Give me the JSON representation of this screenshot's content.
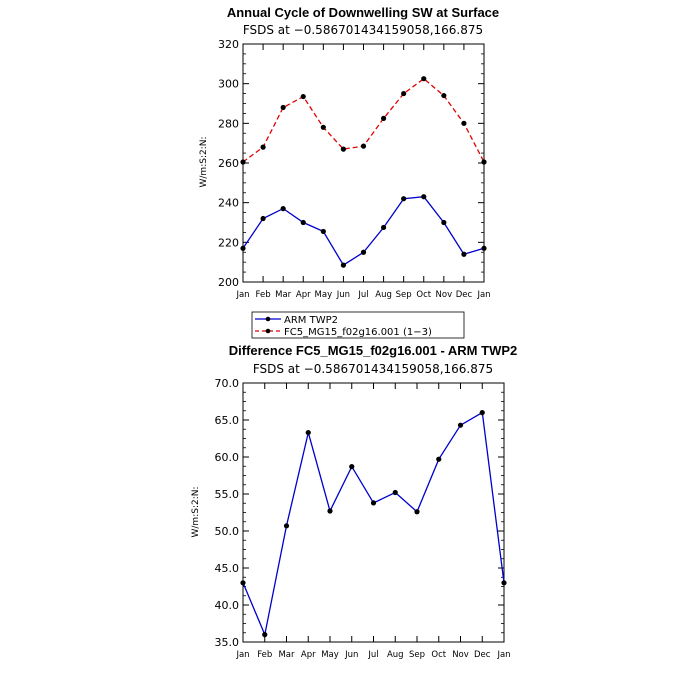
{
  "chart_data": [
    {
      "type": "line",
      "title": "Annual Cycle of Downwelling SW at Surface",
      "subtitle": "FSDS at −0.586701434159058,166.875",
      "xlabel": "",
      "ylabel": "W/m:S:2:N:",
      "categories": [
        "Jan",
        "Feb",
        "Mar",
        "Apr",
        "May",
        "Jun",
        "Jul",
        "Aug",
        "Sep",
        "Oct",
        "Nov",
        "Dec",
        "Jan"
      ],
      "ylim": [
        200,
        320
      ],
      "yticks": [
        "200",
        "220",
        "240",
        "260",
        "280",
        "300",
        "320"
      ],
      "series": [
        {
          "name": "ARM TWP2",
          "color": "#0000cc",
          "dash": "solid",
          "values": [
            217,
            232,
            237,
            230,
            225.5,
            208.5,
            215,
            227.5,
            242,
            243,
            230,
            214,
            217
          ]
        },
        {
          "name": "FC5_MG15_f02g16.001 (1−3)",
          "color": "#e00000",
          "dash": "dashed",
          "values": [
            260.5,
            268,
            288,
            293.5,
            278,
            267,
            268.5,
            282.5,
            295,
            302.5,
            294,
            280,
            260.5
          ]
        }
      ],
      "legend": "below"
    },
    {
      "type": "line",
      "title": "Difference FC5_MG15_f02g16.001 - ARM TWP2",
      "subtitle": "FSDS at −0.586701434159058,166.875",
      "xlabel": "",
      "ylabel": "W/m:S:2:N:",
      "categories": [
        "Jan",
        "Feb",
        "Mar",
        "Apr",
        "May",
        "Jun",
        "Jul",
        "Aug",
        "Sep",
        "Oct",
        "Nov",
        "Dec",
        "Jan"
      ],
      "ylim": [
        35,
        70
      ],
      "yticks": [
        "35.0",
        "40.0",
        "45.0",
        "50.0",
        "55.0",
        "60.0",
        "65.0",
        "70.0"
      ],
      "series": [
        {
          "color": "#0000cc",
          "dash": "solid",
          "values": [
            43,
            36,
            50.7,
            63.3,
            52.7,
            58.7,
            53.8,
            55.2,
            52.6,
            59.7,
            64.3,
            66,
            43
          ]
        }
      ]
    }
  ]
}
